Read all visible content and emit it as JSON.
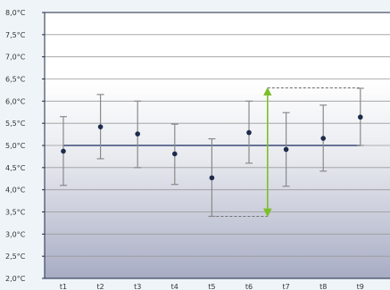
{
  "chart_data": {
    "type": "scatter",
    "categories": [
      "t1",
      "t2",
      "t3",
      "t4",
      "t5",
      "t6",
      "t7",
      "t8",
      "t9"
    ],
    "series": [
      {
        "values": [
          4.87,
          5.42,
          5.26,
          4.81,
          4.27,
          5.29,
          4.91,
          5.16,
          5.64
        ],
        "error_low": [
          4.1,
          4.7,
          4.5,
          4.12,
          3.4,
          4.6,
          4.08,
          4.42,
          5.0
        ],
        "error_high": [
          5.65,
          6.15,
          6.0,
          5.48,
          5.15,
          6.0,
          5.74,
          5.91,
          6.29
        ]
      }
    ],
    "reference_line": 5.0,
    "annotation": {
      "from": 3.4,
      "to": 6.3,
      "at_category": "t6"
    },
    "yticks": [
      "8,0°C",
      "7,5°C",
      "7,0°C",
      "6,5°C",
      "6,0°C",
      "5,5°C",
      "5,0°C",
      "4,5°C",
      "4,0°C",
      "3,5°C",
      "3,0°C",
      "2,5°C",
      "2,0°C"
    ],
    "ylim": [
      2.0,
      8.0
    ],
    "grid": true,
    "colors": {
      "marker": "#1d2c4c",
      "error_bar": "#8a8a8a",
      "reference_line": "#3a4a78",
      "annotation": "#7cbf2a",
      "grid": "#9a9a9a",
      "axis": "#1f2a44"
    }
  }
}
